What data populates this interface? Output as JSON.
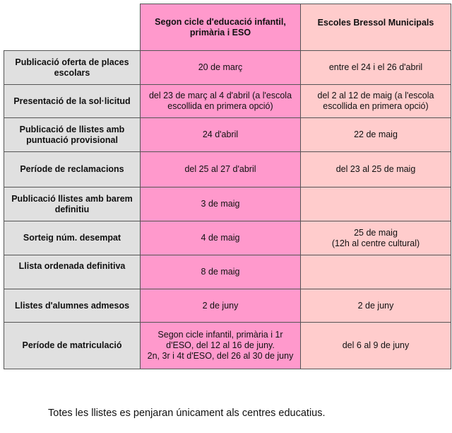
{
  "table": {
    "headers": [
      "",
      "Segon cicle d'educació infantil, primària i ESO",
      "Escoles Bressol Municipals"
    ],
    "rows": [
      {
        "label": "Publicació oferta de places escolars",
        "infantil_primaria_eso": "20 de març",
        "escoles_bressol": "entre el 24 i el 26 d'abril"
      },
      {
        "label": "Presentació de la sol·licitud",
        "infantil_primaria_eso": "del 23 de març al 4 d'abril (a l'escola escollida en primera opció)",
        "escoles_bressol": "del 2 al 12 de maig (a l'escola escollida en primera opció)"
      },
      {
        "label": "Publicació de llistes amb puntuació provisional",
        "infantil_primaria_eso": "24 d'abril",
        "escoles_bressol": "22 de maig"
      },
      {
        "label": "Període de reclamacions",
        "infantil_primaria_eso": "del 25 al 27 d'abril",
        "escoles_bressol": "del 23 al 25 de maig"
      },
      {
        "label": "Publicació llistes amb barem definitiu",
        "infantil_primaria_eso": "3 de maig",
        "escoles_bressol": ""
      },
      {
        "label": "Sorteig núm. desempat",
        "infantil_primaria_eso": "4 de maig",
        "escoles_bressol": "25 de maig\n(12h al centre cultural)"
      },
      {
        "label": "Llista ordenada definitiva",
        "infantil_primaria_eso": "8 de maig",
        "escoles_bressol": ""
      },
      {
        "label": "Llistes d'alumnes admesos",
        "infantil_primaria_eso": "2 de juny",
        "escoles_bressol": "2 de juny"
      },
      {
        "label": "Període de matriculació",
        "infantil_primaria_eso": "Segon cicle infantil, primària i 1r d'ESO, del  12 al 16 de juny.\n2n, 3r i 4t d'ESO, del 26 al 30 de juny",
        "escoles_bressol": "del 6 al 9 de juny"
      }
    ]
  },
  "note": "Totes les llistes es penjaran únicament als centres educatius.",
  "colors": {
    "label_bg": "#e0e0e0",
    "col_infantil": "#ff99cc",
    "col_bressol": "#ffcccc"
  }
}
